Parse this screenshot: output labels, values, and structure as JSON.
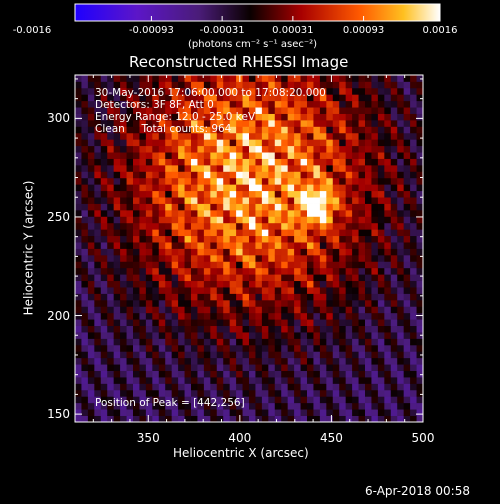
{
  "chart_data": {
    "type": "heatmap",
    "title": "Reconstructed RHESSI Image",
    "xlabel": "Heliocentric X (arcsec)",
    "ylabel": "Heliocentric Y (arcsec)",
    "xlim": [
      310,
      500
    ],
    "ylim": [
      146,
      322
    ],
    "xticks": [
      350,
      400,
      450,
      500
    ],
    "yticks": [
      150,
      200,
      250,
      300
    ],
    "colorbar": {
      "min": -0.0016,
      "max": 0.0016,
      "colormap": "hot-with-blue-purple-negatives",
      "tick_labels": [
        "-0.0016",
        "-0.00093",
        "-0.00031",
        "0.00031",
        "0.00093",
        "0.0016"
      ],
      "unit_label": "(photons cm⁻² s⁻¹ asec⁻²)"
    },
    "annotations": {
      "time_range": "30-May-2016 17:06:00.000 to 17:08:20.000",
      "detectors": "Detectors: 3F 8F, Att 0",
      "energy_range": "Energy Range: 12.0 - 25.0 keV",
      "method_counts": "Clean     Total counts: 964",
      "peak_position": "Position of Peak = [442,256]"
    },
    "peak": [
      442,
      256
    ],
    "source_center": [
      405,
      270
    ],
    "footer_timestamp": "6-Apr-2018 00:58"
  }
}
